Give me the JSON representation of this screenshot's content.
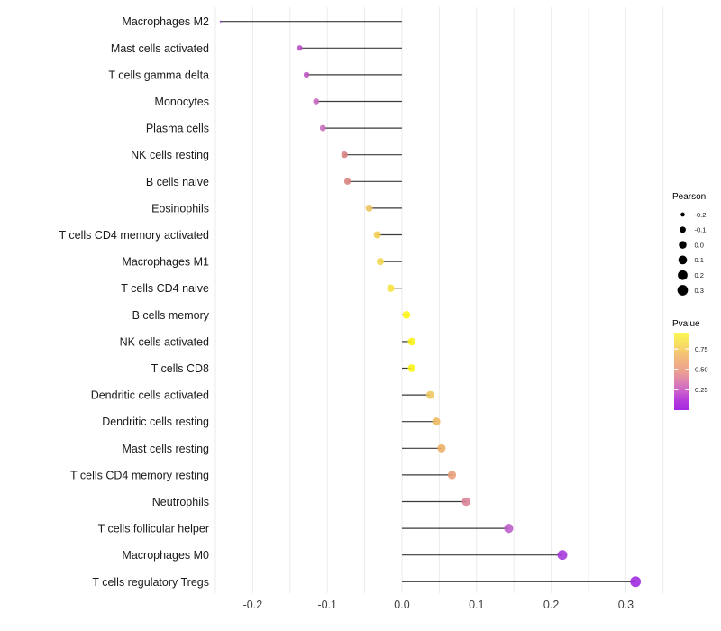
{
  "figure": {
    "background": "#ffffff"
  },
  "chart_data": {
    "type": "lollipop",
    "orientation": "horizontal",
    "title": "",
    "xlabel": "",
    "ylabel": "",
    "xlim": [
      -0.27,
      0.355
    ],
    "x_ticks": [
      -0.2,
      -0.1,
      0.0,
      0.1,
      0.2,
      0.3
    ],
    "x_tick_labels": [
      "-0.2",
      "-0.1",
      "0.0",
      "0.1",
      "0.2",
      "0.3"
    ],
    "grid": {
      "on": true,
      "from": -0.25,
      "to": 0.35,
      "step": 0.05,
      "color": "#ebebeb"
    },
    "baseline": 0,
    "stem_color": "#3a3a3a",
    "axis_text_color": "#404040",
    "label_color": "#1a1a1a",
    "points": [
      {
        "label": "Macrophages M2",
        "pearson": -0.243,
        "pvalue": 0.02,
        "color": "#8a25c9"
      },
      {
        "label": "Mast cells activated",
        "pearson": -0.137,
        "pvalue": 0.22,
        "color": "#ba4ec5"
      },
      {
        "label": "T cells gamma delta",
        "pearson": -0.128,
        "pvalue": 0.24,
        "color": "#bd54c4"
      },
      {
        "label": "Monocytes",
        "pearson": -0.115,
        "pvalue": 0.29,
        "color": "#c566be"
      },
      {
        "label": "Plasma cells",
        "pearson": -0.106,
        "pvalue": 0.31,
        "color": "#c76abb"
      },
      {
        "label": "NK cells resting",
        "pearson": -0.077,
        "pvalue": 0.48,
        "color": "#d5817e"
      },
      {
        "label": "B cells naive",
        "pearson": -0.073,
        "pvalue": 0.5,
        "color": "#d8837f"
      },
      {
        "label": "Eosinophils",
        "pearson": -0.044,
        "pvalue": 0.77,
        "color": "#edc35c"
      },
      {
        "label": "T cells CD4 memory activated",
        "pearson": -0.033,
        "pvalue": 0.81,
        "color": "#f1cd50"
      },
      {
        "label": "Macrophages M1",
        "pearson": -0.029,
        "pvalue": 0.84,
        "color": "#f4d54f"
      },
      {
        "label": "T cells CD4 naive",
        "pearson": -0.015,
        "pvalue": 0.89,
        "color": "#f6e43b"
      },
      {
        "label": "B cells memory",
        "pearson": 0.006,
        "pvalue": 0.95,
        "color": "#fcf50c"
      },
      {
        "label": "NK cells activated",
        "pearson": 0.013,
        "pvalue": 0.93,
        "color": "#fbf314"
      },
      {
        "label": "T cells CD8",
        "pearson": 0.013,
        "pvalue": 0.93,
        "color": "#fbf314"
      },
      {
        "label": "Dendritic cells activated",
        "pearson": 0.038,
        "pvalue": 0.78,
        "color": "#eec75e"
      },
      {
        "label": "Dendritic cells resting",
        "pearson": 0.046,
        "pvalue": 0.73,
        "color": "#edb85e"
      },
      {
        "label": "Mast cells resting",
        "pearson": 0.053,
        "pvalue": 0.7,
        "color": "#edae63"
      },
      {
        "label": "T cells CD4 memory resting",
        "pearson": 0.067,
        "pvalue": 0.61,
        "color": "#e99d76"
      },
      {
        "label": "Neutrophils",
        "pearson": 0.086,
        "pvalue": 0.47,
        "color": "#d97f95"
      },
      {
        "label": "T cells follicular helper",
        "pearson": 0.143,
        "pvalue": 0.25,
        "color": "#bc5bc8"
      },
      {
        "label": "Macrophages M0",
        "pearson": 0.215,
        "pvalue": 0.08,
        "color": "#a636de"
      },
      {
        "label": "T cells regulatory  Tregs",
        "pearson": 0.313,
        "pvalue": 0.04,
        "color": "#9d27df"
      }
    ],
    "legend_size": {
      "title": "Pearson",
      "values": [
        -0.2,
        -0.1,
        0.0,
        0.1,
        0.2,
        0.3
      ],
      "labels": [
        "-0.2",
        "-0.1",
        "0.0",
        "0.1",
        "0.2",
        "0.3"
      ],
      "dot_color": "#000000"
    },
    "legend_color": {
      "title": "Pvalue",
      "tick_values": [
        0.75,
        0.5,
        0.25
      ],
      "tick_labels": [
        "0.75",
        "0.50",
        "0.25"
      ],
      "bar_value_range": [
        0.95,
        0.0
      ],
      "gradient_stops": [
        {
          "offset": 0.0,
          "color": "#fcf754"
        },
        {
          "offset": 0.12,
          "color": "#f9e35f"
        },
        {
          "offset": 0.3,
          "color": "#f3be78"
        },
        {
          "offset": 0.5,
          "color": "#eca090"
        },
        {
          "offset": 0.62,
          "color": "#de85b0"
        },
        {
          "offset": 0.75,
          "color": "#cc62cb"
        },
        {
          "offset": 0.88,
          "color": "#b43bdc"
        },
        {
          "offset": 1.0,
          "color": "#a428e1"
        }
      ]
    }
  }
}
